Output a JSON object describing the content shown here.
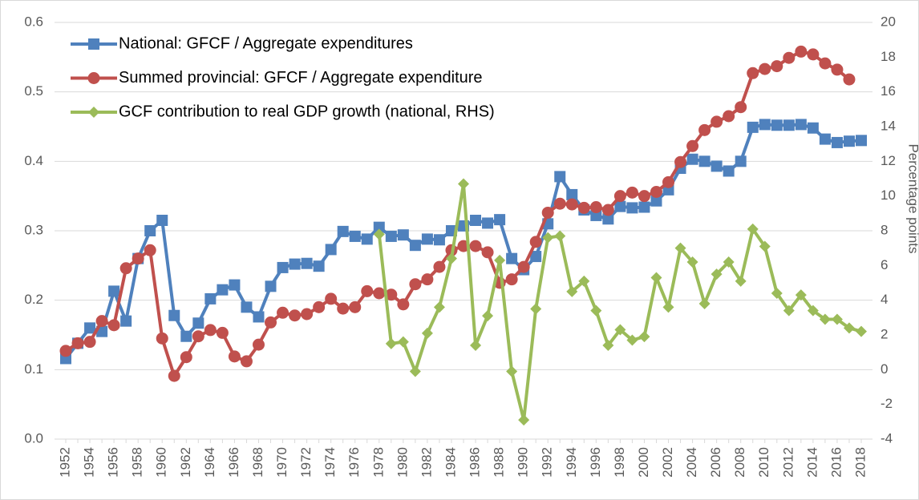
{
  "chart_data": {
    "type": "line",
    "categories": [
      1952,
      null,
      1954,
      null,
      1956,
      null,
      1958,
      null,
      1960,
      null,
      1962,
      null,
      1964,
      null,
      1966,
      null,
      1968,
      null,
      1970,
      null,
      1972,
      null,
      1974,
      null,
      1976,
      null,
      1978,
      null,
      1980,
      null,
      1982,
      null,
      1984,
      null,
      1986,
      null,
      1988,
      null,
      1990,
      null,
      1992,
      null,
      1994,
      null,
      1996,
      null,
      1998,
      null,
      2000,
      null,
      2002,
      null,
      2004,
      null,
      2006,
      null,
      2008,
      null,
      2010,
      null,
      2012,
      null,
      2014,
      null,
      2016,
      null,
      2018
    ],
    "y2label": "Percentage points",
    "ylim": [
      0,
      0.6
    ],
    "yticks": [
      {
        "value": 0,
        "label": "0.0"
      },
      0.1,
      0.2,
      0.3,
      0.4,
      0.5,
      0.6
    ],
    "y2lim": [
      -4,
      20
    ],
    "y2ticks": [
      -4,
      -2,
      0,
      2,
      4,
      6,
      8,
      10,
      12,
      14,
      16,
      18,
      20
    ],
    "grid": true,
    "legend": "upper left",
    "series": [
      {
        "name": "National: GFCF / Aggregate expenditures",
        "color": "#4f81bd",
        "marker": "square",
        "values": [
          0.116,
          0.138,
          0.16,
          0.155,
          0.213,
          0.17,
          0.26,
          0.3,
          0.315,
          0.178,
          0.148,
          0.167,
          0.202,
          0.215,
          0.222,
          0.19,
          0.176,
          0.22,
          0.247,
          0.252,
          0.253,
          0.249,
          0.273,
          0.299,
          0.292,
          0.288,
          0.305,
          0.292,
          0.294,
          0.279,
          0.288,
          0.287,
          0.3,
          0.307,
          0.315,
          0.311,
          0.316,
          0.26,
          0.244,
          0.263,
          0.31,
          0.378,
          0.352,
          0.33,
          0.322,
          0.317,
          0.335,
          0.333,
          0.334,
          0.343,
          0.359,
          0.39,
          0.403,
          0.4,
          0.393,
          0.386,
          0.4,
          0.449,
          0.453,
          0.452,
          0.452,
          0.453,
          0.448,
          0.432,
          0.427,
          0.429,
          0.43
        ]
      },
      {
        "name": "Summed provincial: GFCF / Aggregate expenditure",
        "color": "#c0504d",
        "marker": "circle",
        "values": [
          0.127,
          0.138,
          0.14,
          0.17,
          0.164,
          0.246,
          0.26,
          0.272,
          0.145,
          0.091,
          0.118,
          0.148,
          0.157,
          0.153,
          0.119,
          0.112,
          0.136,
          0.168,
          0.182,
          0.178,
          0.18,
          0.19,
          0.202,
          0.188,
          0.19,
          0.213,
          0.21,
          0.208,
          0.194,
          0.223,
          0.23,
          0.248,
          0.272,
          0.278,
          0.278,
          0.269,
          0.225,
          0.23,
          0.248,
          0.284,
          0.326,
          0.339,
          0.338,
          0.333,
          0.334,
          0.33,
          0.35,
          0.355,
          0.35,
          0.356,
          0.37,
          0.399,
          0.422,
          0.445,
          0.457,
          0.465,
          0.478,
          0.527,
          0.533,
          0.537,
          0.549,
          0.558,
          0.554,
          0.541,
          0.532,
          0.518,
          null
        ]
      },
      {
        "name": "GCF contribution to real GDP growth (national, RHS)",
        "color": "#9bbb59",
        "marker": "diamond",
        "axis": "y2",
        "values": [
          null,
          null,
          null,
          null,
          null,
          null,
          null,
          null,
          null,
          null,
          null,
          null,
          null,
          null,
          null,
          null,
          null,
          null,
          null,
          null,
          null,
          null,
          null,
          null,
          null,
          null,
          7.8,
          1.5,
          1.6,
          -0.1,
          2.1,
          3.6,
          6.4,
          10.7,
          1.4,
          3.1,
          6.3,
          -0.1,
          -2.9,
          3.5,
          7.6,
          7.7,
          4.5,
          5.1,
          3.4,
          1.4,
          2.3,
          1.7,
          1.9,
          5.3,
          3.6,
          7.0,
          6.2,
          3.8,
          5.5,
          6.2,
          5.1,
          8.1,
          7.1,
          4.4,
          3.4,
          4.3,
          3.4,
          2.9,
          2.9,
          2.4,
          2.2
        ]
      }
    ]
  }
}
